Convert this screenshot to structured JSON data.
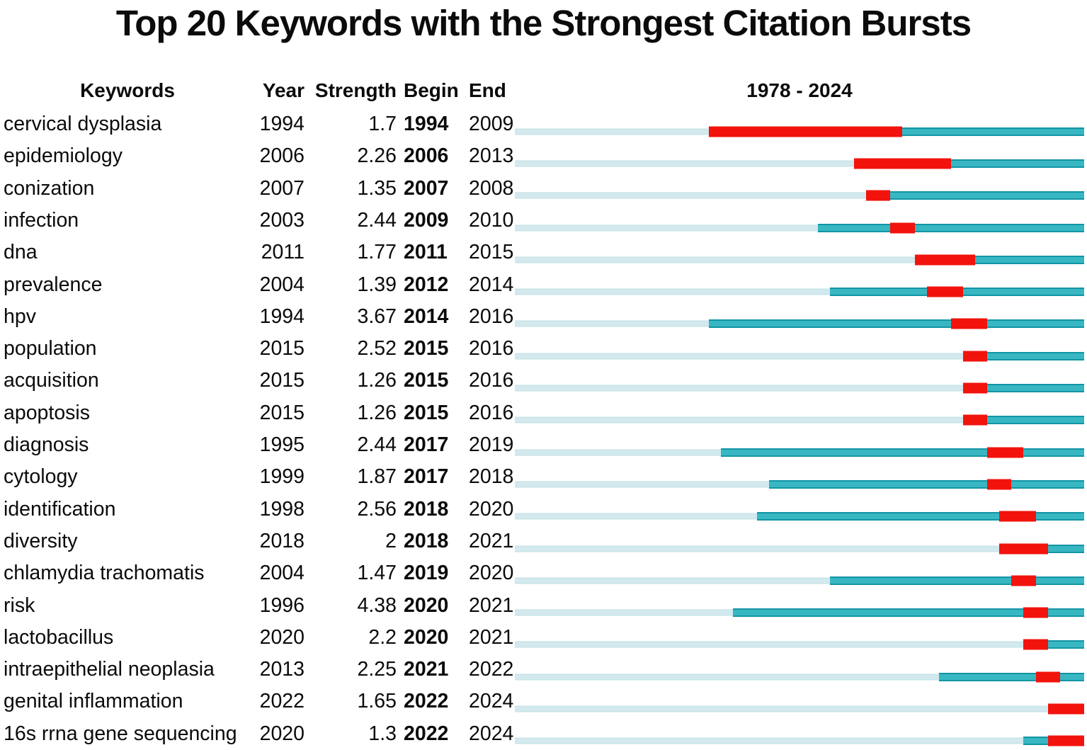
{
  "title": "Top 20 Keywords with the Strongest Citation Bursts",
  "header": {
    "keywords": "Keywords",
    "year": "Year",
    "strength": "Strength",
    "begin": "Begin",
    "end": "End",
    "range": "1978 - 2024"
  },
  "colors": {
    "pale": "#d2e9ee",
    "pale_edge": "#c1e0e7",
    "teal": "#38b7c3",
    "teal_edge": "#1295a4",
    "red": "#f2130d"
  },
  "chart_data": {
    "type": "table",
    "title": "Top 20 Keywords with the Strongest Citation Bursts",
    "columns": [
      "Keywords",
      "Year",
      "Strength",
      "Begin",
      "End",
      "1978 - 2024"
    ],
    "timeline_range": [
      1978,
      2024
    ],
    "legend": {
      "pale_segment": "years before keyword first appeared",
      "teal_segment": "years keyword active",
      "red_segment": "citation burst period (Begin to End)"
    },
    "rows": [
      {
        "keyword": "cervical dysplasia",
        "year": 1994,
        "strength": "1.7",
        "begin": 1994,
        "end": 2009
      },
      {
        "keyword": "epidemiology",
        "year": 2006,
        "strength": "2.26",
        "begin": 2006,
        "end": 2013
      },
      {
        "keyword": "conization",
        "year": 2007,
        "strength": "1.35",
        "begin": 2007,
        "end": 2008
      },
      {
        "keyword": "infection",
        "year": 2003,
        "strength": "2.44",
        "begin": 2009,
        "end": 2010
      },
      {
        "keyword": "dna",
        "year": 2011,
        "strength": "1.77",
        "begin": 2011,
        "end": 2015
      },
      {
        "keyword": "prevalence",
        "year": 2004,
        "strength": "1.39",
        "begin": 2012,
        "end": 2014
      },
      {
        "keyword": "hpv",
        "year": 1994,
        "strength": "3.67",
        "begin": 2014,
        "end": 2016
      },
      {
        "keyword": "population",
        "year": 2015,
        "strength": "2.52",
        "begin": 2015,
        "end": 2016
      },
      {
        "keyword": "acquisition",
        "year": 2015,
        "strength": "1.26",
        "begin": 2015,
        "end": 2016
      },
      {
        "keyword": "apoptosis",
        "year": 2015,
        "strength": "1.26",
        "begin": 2015,
        "end": 2016
      },
      {
        "keyword": "diagnosis",
        "year": 1995,
        "strength": "2.44",
        "begin": 2017,
        "end": 2019
      },
      {
        "keyword": "cytology",
        "year": 1999,
        "strength": "1.87",
        "begin": 2017,
        "end": 2018
      },
      {
        "keyword": "identification",
        "year": 1998,
        "strength": "2.56",
        "begin": 2018,
        "end": 2020
      },
      {
        "keyword": "diversity",
        "year": 2018,
        "strength": "2",
        "begin": 2018,
        "end": 2021
      },
      {
        "keyword": "chlamydia trachomatis",
        "year": 2004,
        "strength": "1.47",
        "begin": 2019,
        "end": 2020
      },
      {
        "keyword": "risk",
        "year": 1996,
        "strength": "4.38",
        "begin": 2020,
        "end": 2021
      },
      {
        "keyword": "lactobacillus",
        "year": 2020,
        "strength": "2.2",
        "begin": 2020,
        "end": 2021
      },
      {
        "keyword": "intraepithelial neoplasia",
        "year": 2013,
        "strength": "2.25",
        "begin": 2021,
        "end": 2022
      },
      {
        "keyword": "genital inflammation",
        "year": 2022,
        "strength": "1.65",
        "begin": 2022,
        "end": 2024
      },
      {
        "keyword": "16s rrna gene sequencing",
        "year": 2020,
        "strength": "1.3",
        "begin": 2022,
        "end": 2024
      }
    ]
  }
}
